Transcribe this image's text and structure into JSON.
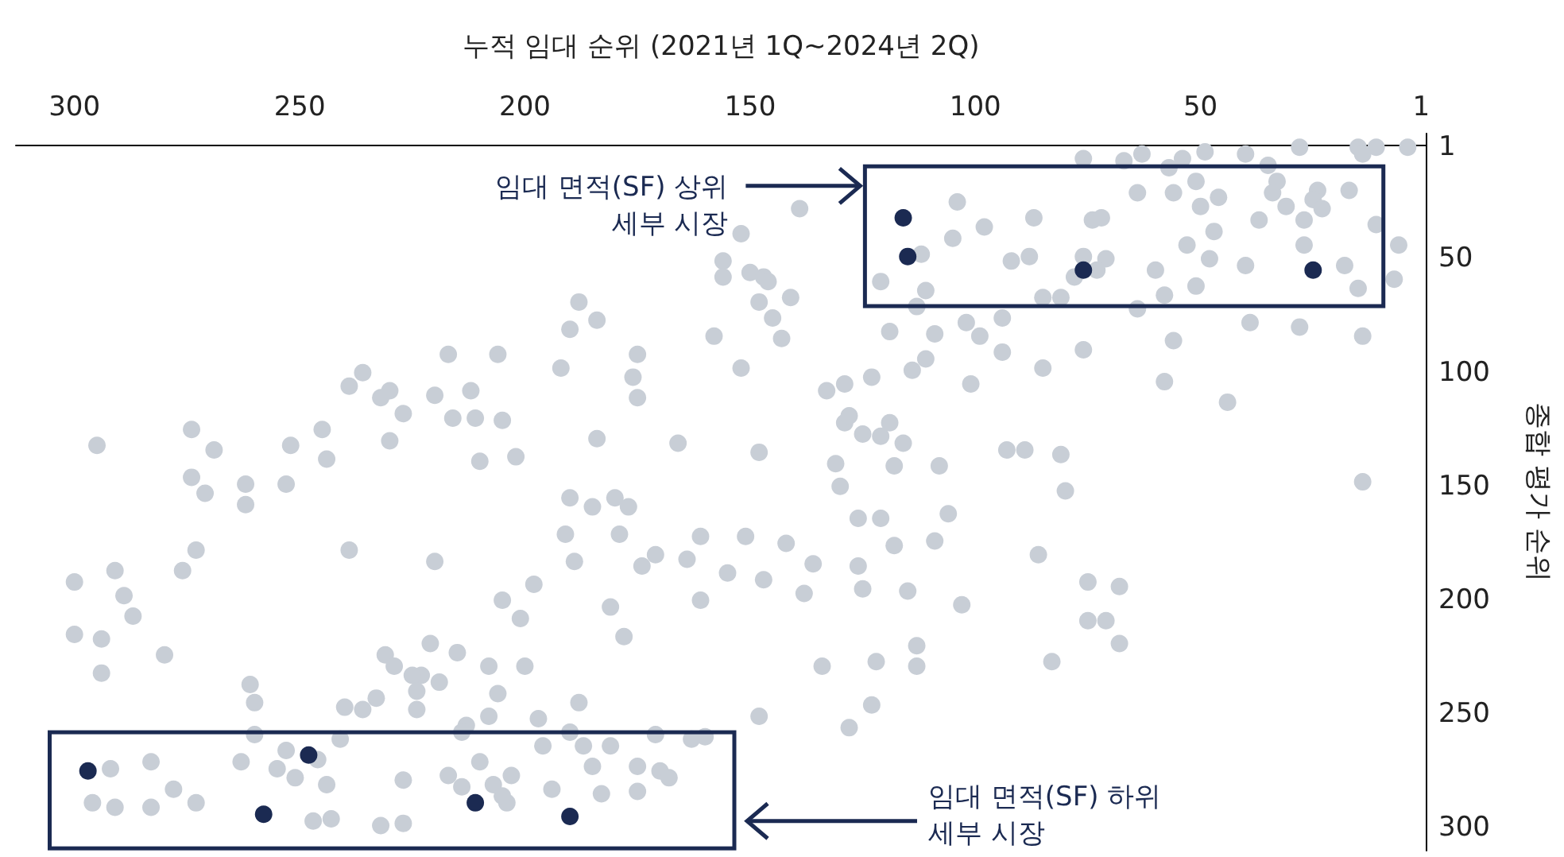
{
  "chart_data": {
    "type": "scatter",
    "xlabel": "누적 임대 순위 (2021년 1Q~2024년 2Q)",
    "ylabel": "종합 평가 순위",
    "xlim": [
      313,
      0
    ],
    "ylim": [
      310,
      -5
    ],
    "xticks": [
      300,
      250,
      200,
      150,
      100,
      50,
      1
    ],
    "yticks": [
      1,
      50,
      100,
      150,
      200,
      250,
      300
    ],
    "grid": false,
    "marker": "circle",
    "annotations": [
      "임대 면적(SF) 상위\n세부 시장",
      "임대 면적(SF) 하위\n세부 시장"
    ],
    "series": [
      {
        "color": "#c8ced6",
        "x": [
          11,
          4,
          15,
          14,
          49,
          54,
          63,
          57,
          76,
          67,
          35,
          28,
          40,
          24,
          33,
          34,
          25,
          31,
          51,
          50,
          46,
          56,
          64,
          87,
          104,
          98,
          88,
          112,
          105,
          74,
          72,
          76,
          71,
          64,
          56,
          58,
          39,
          27,
          11,
          6,
          18,
          40,
          15,
          7,
          14,
          28,
          44,
          14,
          23,
          17,
          37,
          47,
          60,
          58,
          53,
          92,
          85,
          81,
          51,
          48,
          27,
          73,
          139,
          156,
          156,
          150,
          147,
          146,
          152,
          148,
          158,
          152,
          145,
          143,
          141,
          133,
          129,
          129,
          131,
          130,
          125,
          121,
          119,
          116,
          123,
          121,
          119,
          113,
          109,
          101,
          111,
          114,
          111,
          128,
          118,
          108,
          93,
          85,
          94,
          94,
          99,
          102,
          78,
          76,
          106,
          109,
          89,
          81,
          80,
          86,
          75,
          68,
          75,
          71,
          68,
          103,
          83,
          113,
          113,
          122,
          123,
          128,
          134,
          138,
          136,
          125,
          115,
          126,
          118,
          121,
          126,
          148,
          161,
          142,
          151,
          155,
          147,
          161,
          171,
          174,
          164,
          179,
          180,
          185,
          190,
          191,
          181,
          178,
          177,
          166,
          175,
          176,
          175,
          192,
          184,
          190,
          188,
          206,
          217,
          205,
          202,
          212,
          211,
          210,
          184,
          198,
          189,
          205,
          201,
          220,
          208,
          200,
          206,
          208,
          213,
          221,
          223,
          215,
          231,
          229,
          225,
          224,
          224,
          236,
          233,
          240,
          219,
          197,
          188,
          190,
          181,
          187,
          185,
          171,
          170,
          175,
          168,
          183,
          175,
          163,
          160,
          194,
          203,
          207,
          210,
          214,
          204,
          214,
          148,
          227,
          230,
          236,
          232,
          239,
          230,
          220,
          216,
          245,
          244,
          239,
          252,
          253,
          262,
          262,
          274,
          295,
          269,
          271,
          274,
          273,
          276,
          294,
          300,
          291,
          287,
          289,
          300,
          294,
          280,
          261,
          260,
          260,
          253,
          255,
          263,
          283,
          292,
          296,
          291,
          283,
          278,
          273,
          246,
          244,
          243,
          247,
          251,
          241,
          227,
          232,
          227,
          217,
          205,
          196
        ],
        "values": [
          1,
          1,
          1,
          4,
          3,
          6,
          4,
          10,
          6,
          7,
          9,
          1,
          4,
          20,
          16,
          21,
          24,
          27,
          16,
          27,
          23,
          21,
          21,
          32,
          25,
          36,
          49,
          48,
          41,
          33,
          32,
          49,
          50,
          72,
          86,
          104,
          78,
          33,
          35,
          44,
          53,
          53,
          63,
          59,
          84,
          80,
          113,
          148,
          28,
          20,
          33,
          38,
          55,
          66,
          44,
          51,
          67,
          67,
          62,
          50,
          44,
          55,
          28,
          51,
          58,
          56,
          58,
          60,
          39,
          69,
          84,
          98,
          76,
          85,
          67,
          108,
          105,
          122,
          140,
          150,
          127,
          128,
          122,
          131,
          102,
          60,
          82,
          71,
          83,
          105,
          94,
          99,
          64,
          119,
          141,
          141,
          134,
          98,
          91,
          76,
          84,
          78,
          58,
          90,
          162,
          174,
          134,
          136,
          152,
          180,
          192,
          194,
          209,
          209,
          219,
          202,
          227,
          220,
          229,
          227,
          246,
          256,
          229,
          197,
          184,
          195,
          196,
          185,
          176,
          164,
          164,
          135,
          172,
          175,
          172,
          188,
          191,
          200,
          180,
          185,
          182,
          171,
          155,
          159,
          155,
          171,
          203,
          216,
          159,
          131,
          92,
          102,
          111,
          98,
          77,
          81,
          69,
          92,
          92,
          121,
          137,
          108,
          120,
          139,
          129,
          193,
          183,
          200,
          208,
          183,
          229,
          229,
          241,
          251,
          255,
          219,
          233,
          223,
          224,
          229,
          233,
          240,
          248,
          248,
          243,
          247,
          236,
          252,
          245,
          258,
          264,
          264,
          273,
          259,
          275,
          273,
          278,
          285,
          284,
          261,
          260,
          283,
          277,
          281,
          271,
          258,
          289,
          282,
          251,
          118,
          108,
          100,
          111,
          106,
          130,
          110,
          120,
          125,
          138,
          178,
          132,
          149,
          158,
          149,
          125,
          132,
          134,
          153,
          146,
          178,
          187,
          217,
          192,
          187,
          207,
          198,
          215,
          232,
          224,
          237,
          245,
          259,
          266,
          274,
          271,
          271,
          274,
          289,
          291,
          291,
          283,
          289,
          270,
          281,
          296,
          297,
          278,
          261,
          298,
          299,
          279,
          277,
          286,
          264
        ]
      },
      {
        "color": "#1b2a52",
        "x": [
          116,
          115,
          76,
          25,
          297,
          248,
          258,
          211,
          190
        ],
        "values": [
          32,
          49,
          55,
          55,
          275,
          268,
          294,
          289,
          295
        ]
      }
    ]
  }
}
